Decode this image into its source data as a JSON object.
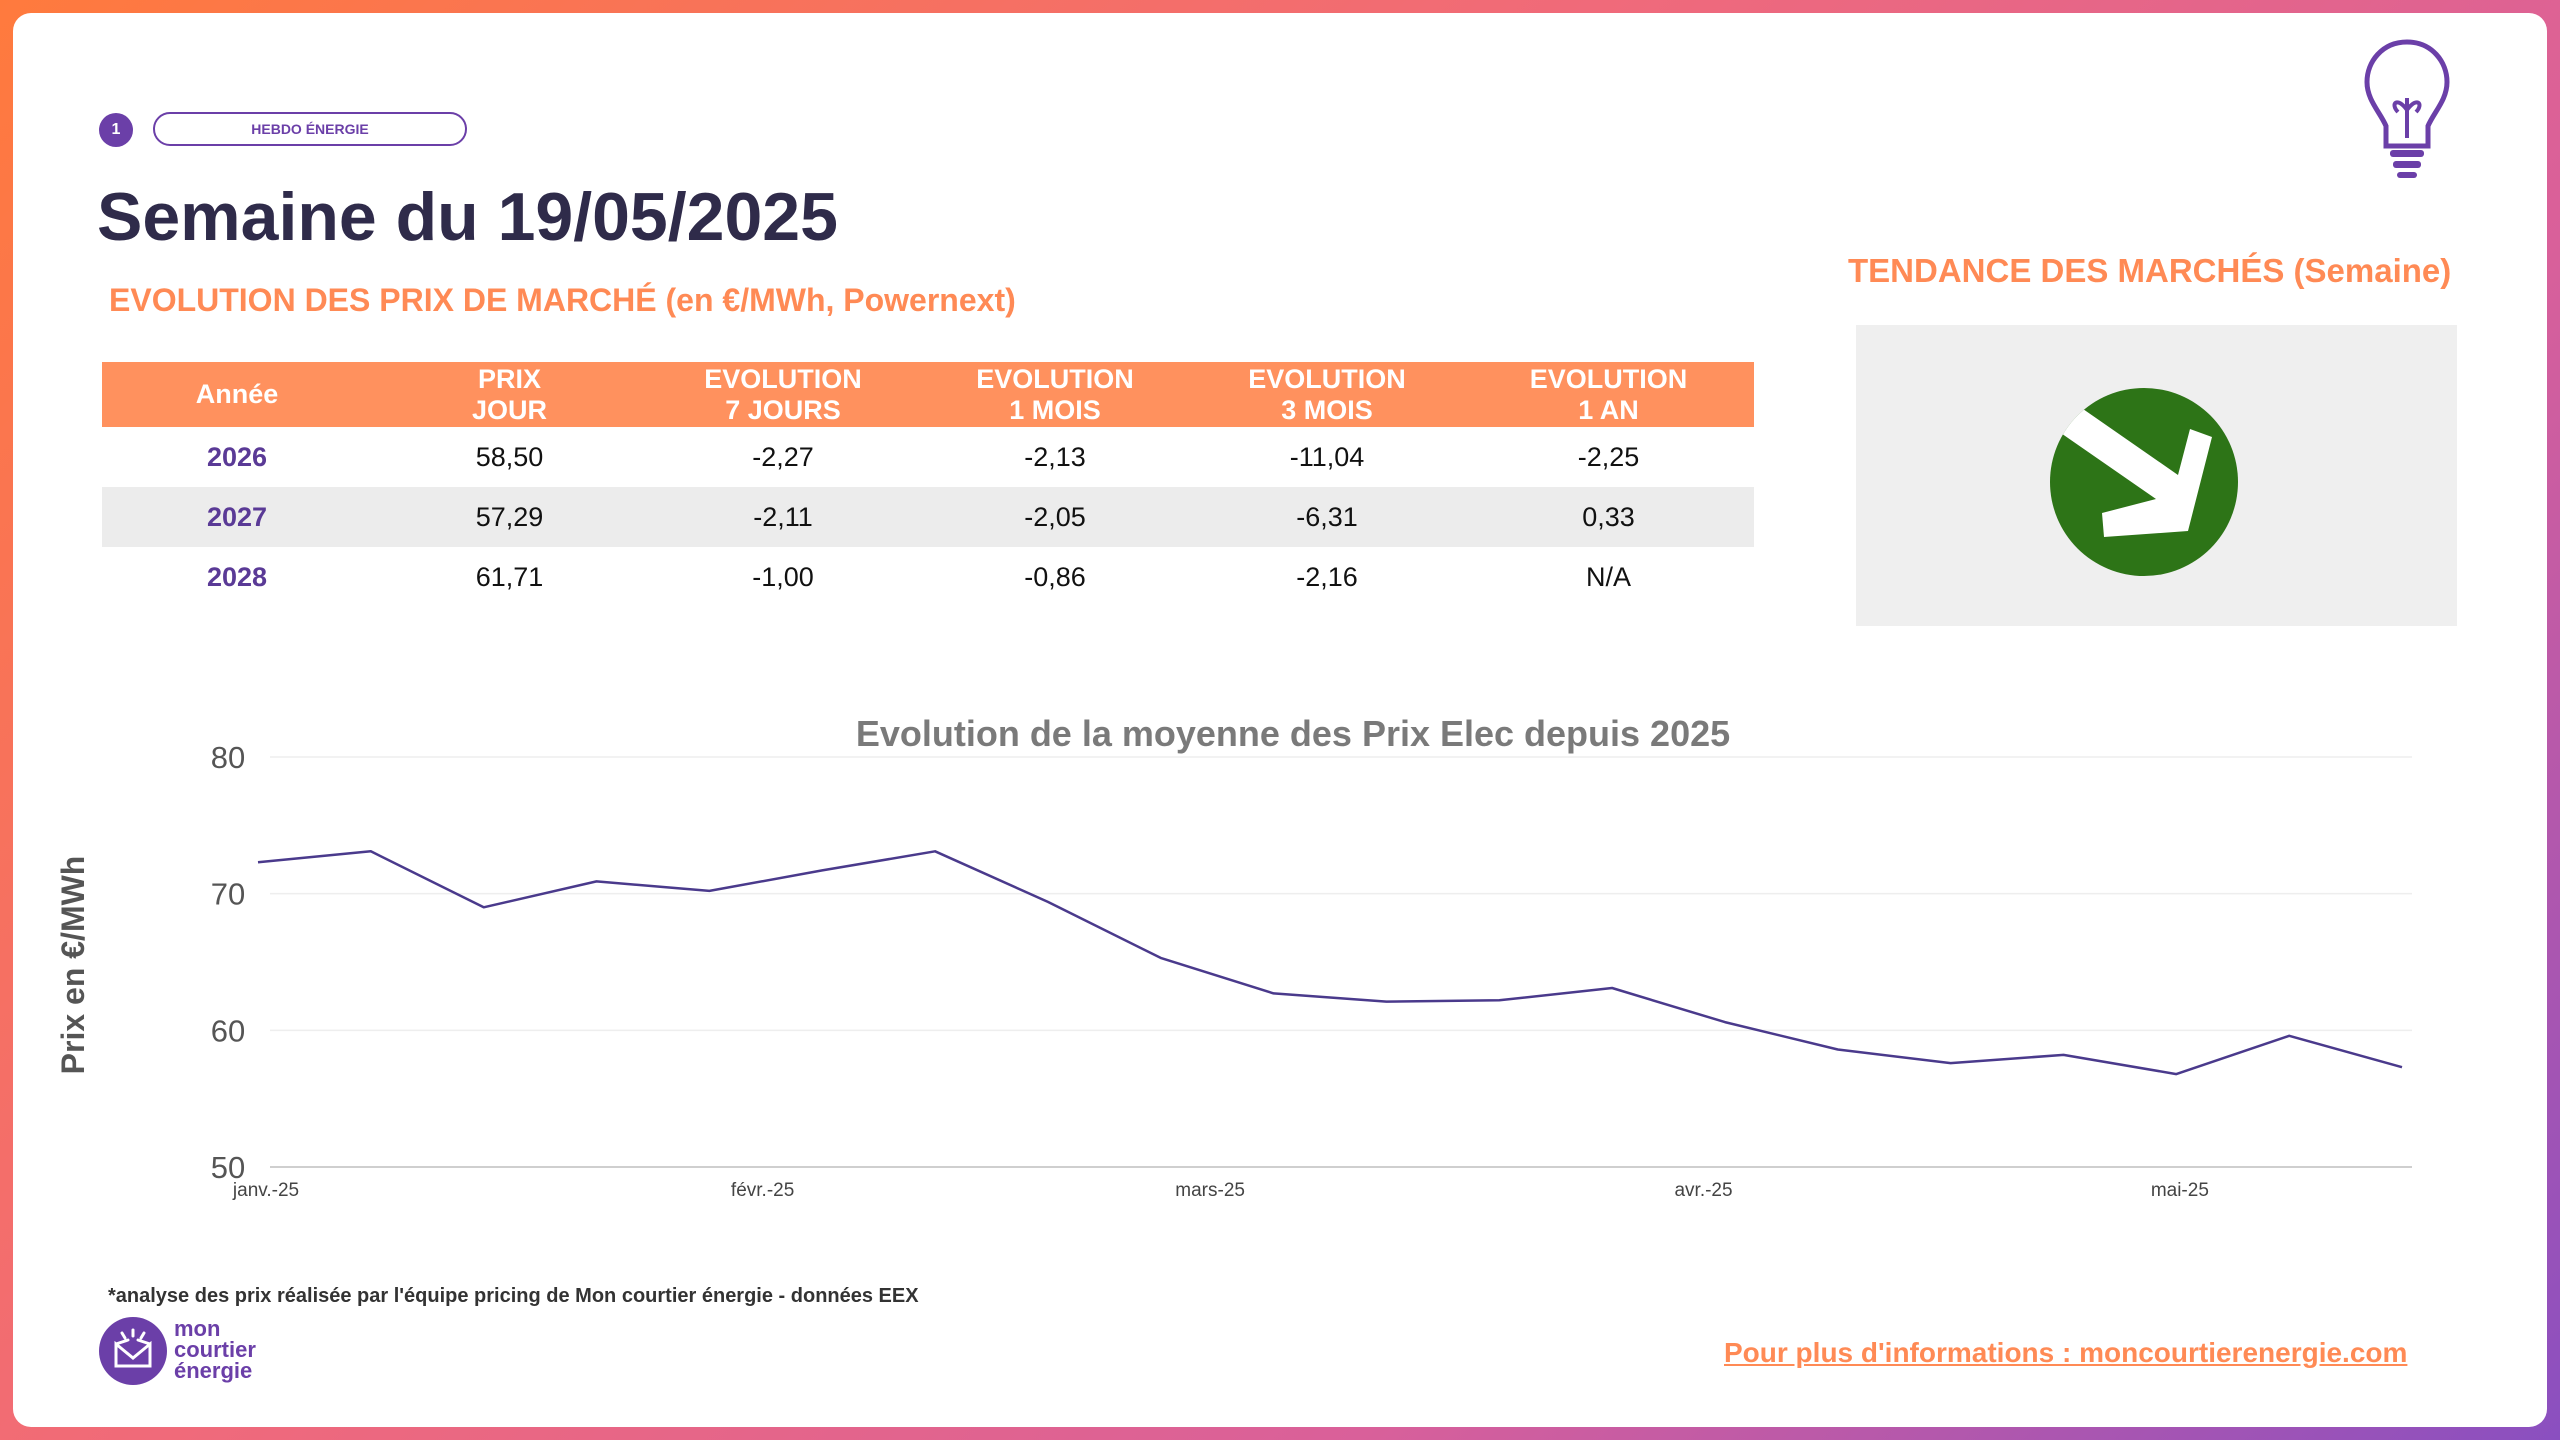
{
  "header": {
    "badge_number": "1",
    "badge_label": "HEBDO ÉNERGIE",
    "title": "Semaine du 19/05/2025"
  },
  "table": {
    "title": "EVOLUTION DES PRIX DE MARCHÉ (en €/MWh, Powernext)",
    "headers": [
      [
        "Année"
      ],
      [
        "PRIX",
        "JOUR"
      ],
      [
        "EVOLUTION",
        "7 JOURS"
      ],
      [
        "EVOLUTION",
        "1 MOIS"
      ],
      [
        "EVOLUTION",
        "3 MOIS"
      ],
      [
        "EVOLUTION",
        "1 AN"
      ]
    ],
    "rows": [
      [
        "2026",
        "58,50",
        "-2,27",
        "-2,13",
        "-11,04",
        "-2,25"
      ],
      [
        "2027",
        "57,29",
        "-2,11",
        "-2,05",
        "-6,31",
        "0,33"
      ],
      [
        "2028",
        "61,71",
        "-1,00",
        "-0,86",
        "-2,16",
        "N/A"
      ]
    ]
  },
  "trend": {
    "title": "TENDANCE DES MARCHÉS (Semaine)",
    "direction": "down",
    "icon": "arrow-down-right-icon",
    "color": "#2d7417"
  },
  "chart_data": {
    "type": "line",
    "title": "Evolution de la moyenne des Prix Elec depuis 2025",
    "xlabel": "",
    "ylabel": "Prix en €/MWh",
    "ylim": [
      50,
      80
    ],
    "yticks": [
      "50",
      "60",
      "70",
      "80"
    ],
    "xticks": [
      "janv.-25",
      "févr.-25",
      "mars-25",
      "avr.-25",
      "mai-25"
    ],
    "grid": true,
    "legend": "none",
    "color": "#4a3a8c",
    "series": [
      {
        "values": [
          72.3,
          73.1,
          69.0,
          70.9,
          70.2,
          71.7,
          73.1,
          69.4,
          65.3,
          62.7,
          62.1,
          62.2,
          63.1,
          60.6,
          58.6,
          57.6,
          58.2,
          56.8,
          59.6,
          57.3
        ]
      }
    ]
  },
  "footer": {
    "footnote": "*analyse des prix réalisée par l'équipe pricing de Mon courtier énergie -  données EEX",
    "logo_lines": [
      "mon",
      "courtier",
      "énergie"
    ],
    "more_info": "Pour plus d'informations : moncourtierenergie.com"
  },
  "colors": {
    "accent_orange": "#ff8a55",
    "brand_purple": "#6b3fa8",
    "title_dark": "#2f2b4a"
  }
}
